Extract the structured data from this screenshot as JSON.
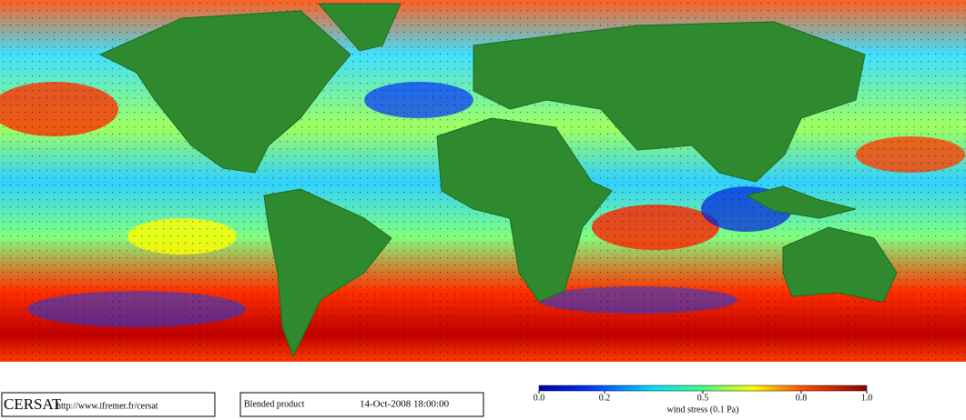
{
  "footer": {
    "logo": "CERSAT",
    "url": "http://www.ifremer.fr/cersat",
    "product": "Blended product",
    "date": "14-Oct-2008 18:00:00"
  },
  "colorbar": {
    "label": "wind stress (0.1 Pa)",
    "lim": [
      0,
      1
    ],
    "ticks": [
      {
        "value": 0,
        "label": "0.0"
      },
      0.2,
      0.5,
      0.8,
      {
        "value": 1,
        "label": "1.0"
      }
    ]
  }
}
